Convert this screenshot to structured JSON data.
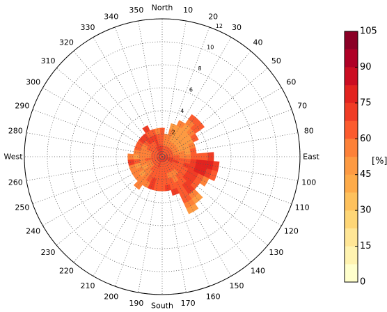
{
  "chart_data": {
    "type": "polar-heatmap",
    "title": "",
    "radial_axis": {
      "ticks": [
        2,
        4,
        6,
        8,
        10,
        12
      ],
      "tick_labels": [
        "2",
        "4",
        "6",
        "8",
        "10",
        "12"
      ],
      "max": 12
    },
    "angular_axis": {
      "direction": "clockwise",
      "zero": "north",
      "step_deg": 10,
      "labels": [
        {
          "deg": 0,
          "text": "North"
        },
        {
          "deg": 10,
          "text": "10"
        },
        {
          "deg": 20,
          "text": "20"
        },
        {
          "deg": 30,
          "text": "30"
        },
        {
          "deg": 40,
          "text": "40"
        },
        {
          "deg": 50,
          "text": "50"
        },
        {
          "deg": 60,
          "text": "60"
        },
        {
          "deg": 70,
          "text": "70"
        },
        {
          "deg": 80,
          "text": "80"
        },
        {
          "deg": 90,
          "text": "East"
        },
        {
          "deg": 100,
          "text": "100"
        },
        {
          "deg": 110,
          "text": "110"
        },
        {
          "deg": 120,
          "text": "120"
        },
        {
          "deg": 130,
          "text": "130"
        },
        {
          "deg": 140,
          "text": "140"
        },
        {
          "deg": 150,
          "text": "150"
        },
        {
          "deg": 160,
          "text": "160"
        },
        {
          "deg": 170,
          "text": "170"
        },
        {
          "deg": 180,
          "text": "South"
        },
        {
          "deg": 190,
          "text": "190"
        },
        {
          "deg": 200,
          "text": "200"
        },
        {
          "deg": 210,
          "text": "210"
        },
        {
          "deg": 220,
          "text": "220"
        },
        {
          "deg": 230,
          "text": "230"
        },
        {
          "deg": 240,
          "text": "240"
        },
        {
          "deg": 250,
          "text": "250"
        },
        {
          "deg": 260,
          "text": "260"
        },
        {
          "deg": 270,
          "text": "West"
        },
        {
          "deg": 280,
          "text": "280"
        },
        {
          "deg": 290,
          "text": "290"
        },
        {
          "deg": 300,
          "text": "300"
        },
        {
          "deg": 310,
          "text": "310"
        },
        {
          "deg": 320,
          "text": "320"
        },
        {
          "deg": 330,
          "text": "330"
        },
        {
          "deg": 340,
          "text": "340"
        },
        {
          "deg": 350,
          "text": "350"
        }
      ]
    },
    "grid": true,
    "colorbar": {
      "label": "[%]",
      "min": 0,
      "max": 105,
      "ticks": [
        0,
        15,
        30,
        45,
        60,
        75,
        90,
        105
      ],
      "tick_labels": [
        "0",
        "15",
        "30",
        "45",
        "60",
        "75",
        "90",
        "105"
      ],
      "levels": [
        {
          "from": 0,
          "to": 7.5,
          "color": "#ffffcc"
        },
        {
          "from": 7.5,
          "to": 15,
          "color": "#fff3b0"
        },
        {
          "from": 15,
          "to": 22.5,
          "color": "#ffe696"
        },
        {
          "from": 22.5,
          "to": 30,
          "color": "#fed676"
        },
        {
          "from": 30,
          "to": 37.5,
          "color": "#fec15c"
        },
        {
          "from": 37.5,
          "to": 45,
          "color": "#feab49"
        },
        {
          "from": 45,
          "to": 52.5,
          "color": "#fd9a42"
        },
        {
          "from": 52.5,
          "to": 60,
          "color": "#fd8138"
        },
        {
          "from": 60,
          "to": 67.5,
          "color": "#fc5b2e"
        },
        {
          "from": 67.5,
          "to": 75,
          "color": "#f03c25"
        },
        {
          "from": 75,
          "to": 82.5,
          "color": "#e2231f"
        },
        {
          "from": 82.5,
          "to": 90,
          "color": "#cb0d22"
        },
        {
          "from": 90,
          "to": 97.5,
          "color": "#af0026"
        },
        {
          "from": 97.5,
          "to": 105,
          "color": "#8b0026"
        }
      ]
    },
    "bin_width_deg": 10,
    "bin_width_r": 0.5,
    "sectors": [
      {
        "deg": 0,
        "r_max": 2.5,
        "values": [
          70,
          68,
          64,
          66,
          60
        ]
      },
      {
        "deg": 10,
        "r_max": 2.0,
        "values": [
          68,
          64,
          58,
          54
        ]
      },
      {
        "deg": 20,
        "r_max": 3.0,
        "values": [
          66,
          62,
          58,
          54,
          56,
          52
        ]
      },
      {
        "deg": 30,
        "r_max": 3.5,
        "values": [
          66,
          62,
          56,
          52,
          48,
          52,
          56
        ]
      },
      {
        "deg": 40,
        "r_max": 4.5,
        "values": [
          64,
          60,
          56,
          50,
          48,
          46,
          50,
          58,
          64
        ]
      },
      {
        "deg": 50,
        "r_max": 4.5,
        "values": [
          66,
          60,
          56,
          52,
          48,
          46,
          54,
          62,
          66
        ]
      },
      {
        "deg": 60,
        "r_max": 3.5,
        "values": [
          66,
          60,
          54,
          50,
          46,
          52,
          60
        ]
      },
      {
        "deg": 70,
        "r_max": 3.0,
        "values": [
          68,
          62,
          56,
          50,
          48,
          54
        ]
      },
      {
        "deg": 80,
        "r_max": 3.0,
        "values": [
          68,
          64,
          58,
          54,
          52,
          60
        ]
      },
      {
        "deg": 90,
        "r_max": 4.5,
        "values": [
          70,
          66,
          62,
          58,
          56,
          60,
          64,
          66,
          68
        ]
      },
      {
        "deg": 100,
        "r_max": 5.0,
        "values": [
          72,
          68,
          66,
          64,
          66,
          70,
          76,
          80,
          78,
          72
        ]
      },
      {
        "deg": 110,
        "r_max": 5.0,
        "values": [
          72,
          70,
          68,
          66,
          68,
          72,
          78,
          76,
          70,
          62
        ]
      },
      {
        "deg": 120,
        "r_max": 4.5,
        "values": [
          72,
          68,
          66,
          64,
          66,
          70,
          74,
          66,
          58
        ]
      },
      {
        "deg": 130,
        "r_max": 4.0,
        "values": [
          70,
          66,
          62,
          60,
          64,
          72,
          70,
          62
        ]
      },
      {
        "deg": 140,
        "r_max": 5.0,
        "values": [
          70,
          66,
          62,
          58,
          60,
          64,
          68,
          70,
          58,
          52
        ]
      },
      {
        "deg": 150,
        "r_max": 5.5,
        "values": [
          68,
          64,
          60,
          56,
          58,
          62,
          66,
          64,
          60,
          56,
          52
        ]
      },
      {
        "deg": 160,
        "r_max": 3.5,
        "values": [
          68,
          64,
          60,
          58,
          62,
          66,
          74
        ]
      },
      {
        "deg": 170,
        "r_max": 3.0,
        "values": [
          70,
          66,
          62,
          60,
          64,
          68
        ]
      },
      {
        "deg": 180,
        "r_max": 3.0,
        "values": [
          70,
          66,
          64,
          62,
          66,
          60
        ]
      },
      {
        "deg": 190,
        "r_max": 3.0,
        "values": [
          70,
          66,
          64,
          62,
          64,
          62
        ]
      },
      {
        "deg": 200,
        "r_max": 3.0,
        "values": [
          70,
          68,
          66,
          64,
          68,
          72
        ]
      },
      {
        "deg": 210,
        "r_max": 3.0,
        "values": [
          70,
          66,
          62,
          60,
          62,
          58
        ]
      },
      {
        "deg": 220,
        "r_max": 3.5,
        "values": [
          68,
          64,
          60,
          56,
          54,
          56,
          58
        ]
      },
      {
        "deg": 230,
        "r_max": 3.0,
        "values": [
          68,
          64,
          58,
          54,
          52,
          54
        ]
      },
      {
        "deg": 240,
        "r_max": 3.0,
        "values": [
          66,
          62,
          56,
          52,
          54,
          56
        ]
      },
      {
        "deg": 250,
        "r_max": 3.0,
        "values": [
          68,
          62,
          58,
          54,
          52,
          54
        ]
      },
      {
        "deg": 260,
        "r_max": 3.0,
        "values": [
          68,
          64,
          60,
          56,
          62,
          68
        ]
      },
      {
        "deg": 270,
        "r_max": 3.0,
        "values": [
          68,
          64,
          58,
          54,
          52,
          58
        ]
      },
      {
        "deg": 280,
        "r_max": 2.5,
        "values": [
          66,
          62,
          58,
          54,
          56
        ]
      },
      {
        "deg": 290,
        "r_max": 2.5,
        "values": [
          66,
          62,
          58,
          56,
          60
        ]
      },
      {
        "deg": 300,
        "r_max": 2.5,
        "values": [
          68,
          64,
          60,
          58,
          62
        ]
      },
      {
        "deg": 310,
        "r_max": 2.5,
        "values": [
          68,
          64,
          62,
          66,
          70
        ]
      },
      {
        "deg": 320,
        "r_max": 2.5,
        "values": [
          70,
          66,
          64,
          72,
          68
        ]
      },
      {
        "deg": 330,
        "r_max": 3.0,
        "values": [
          72,
          68,
          66,
          70,
          64,
          74
        ]
      },
      {
        "deg": 340,
        "r_max": 2.5,
        "values": [
          72,
          70,
          68,
          72,
          66
        ]
      },
      {
        "deg": 350,
        "r_max": 2.5,
        "values": [
          70,
          68,
          64,
          62,
          58
        ]
      }
    ]
  }
}
